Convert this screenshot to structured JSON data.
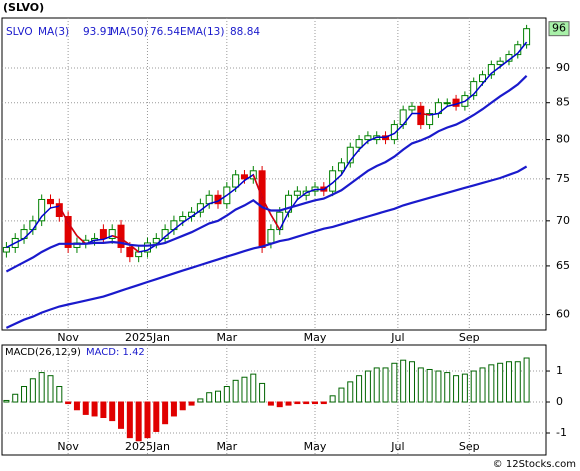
{
  "chart_data": {
    "type": "candlestick",
    "title": "(SLVO)",
    "symbol": "SLVO",
    "log_scale": true,
    "grid": true,
    "ylim": [
      58.5,
      97.7
    ],
    "yticks": [
      60,
      65,
      70,
      75,
      80,
      85,
      90
    ],
    "xlim": [
      -0.5,
      61.2
    ],
    "xticks": [
      {
        "value": 7,
        "label": "Nov"
      },
      {
        "value": 16,
        "label": "2025Jan"
      },
      {
        "value": 25,
        "label": "Mar"
      },
      {
        "value": 35,
        "label": "May"
      },
      {
        "value": 44.4,
        "label": "Jul"
      },
      {
        "value": 52.5,
        "label": "Sep"
      }
    ],
    "open": [
      66.5,
      67,
      68,
      69,
      70,
      72.5,
      72,
      70.5,
      67,
      67.5,
      67.8,
      69,
      68,
      69.5,
      67,
      66,
      66.5,
      67.5,
      68,
      69,
      70,
      70.5,
      71,
      72,
      73,
      72,
      74,
      75.5,
      75,
      76,
      67.5,
      69,
      71,
      73,
      73,
      73.5,
      74,
      73.5,
      76,
      77,
      79,
      80,
      80,
      80.5,
      80,
      82,
      84,
      84.5,
      82,
      83.5,
      85,
      85.5,
      84.5,
      86,
      88,
      89,
      90.5,
      91,
      92,
      93.5
    ],
    "high": [
      67.6,
      68.6,
      69.6,
      70.6,
      73.1,
      73.1,
      72.6,
      71.1,
      68.1,
      68.4,
      68.6,
      69.6,
      69.6,
      70.1,
      67.6,
      67.1,
      68.1,
      68.6,
      69.6,
      70.6,
      71.1,
      71.6,
      72.6,
      73.6,
      73.6,
      74.6,
      76.1,
      76.1,
      76.6,
      76.6,
      69.6,
      71.6,
      73.6,
      74.1,
      74.1,
      74.6,
      74.6,
      76.6,
      77.6,
      79.6,
      80.6,
      81.1,
      81.1,
      81.1,
      82.6,
      84.6,
      85.1,
      85.1,
      84.1,
      85.6,
      85.6,
      86.1,
      86.6,
      88.6,
      89.6,
      91.1,
      91.6,
      92.6,
      94.1,
      96.6
    ],
    "low": [
      65.9,
      66.4,
      67.4,
      68.4,
      69.4,
      71.4,
      69.9,
      66.4,
      66.4,
      66.9,
      67.2,
      67.4,
      67.4,
      66.4,
      65.4,
      65.4,
      65.9,
      66.9,
      67.4,
      68.4,
      69.4,
      69.9,
      70.4,
      71.4,
      71.4,
      71.4,
      73.4,
      74.4,
      74.4,
      66.4,
      66.9,
      68.4,
      70.4,
      72.4,
      72.4,
      72.9,
      72.9,
      72.9,
      75.4,
      76.4,
      78.4,
      79.4,
      79.4,
      79.4,
      79.4,
      81.4,
      83.4,
      81.4,
      81.4,
      82.9,
      84.4,
      83.9,
      83.9,
      85.4,
      87.4,
      88.4,
      89.9,
      90.4,
      91.4,
      92.9
    ],
    "close": [
      67,
      68,
      69,
      70,
      72.5,
      72,
      70.5,
      67,
      67.5,
      67.8,
      68,
      68,
      69,
      67,
      66,
      66.5,
      67.5,
      68,
      69,
      70,
      70.5,
      71,
      72,
      73,
      72,
      74,
      75.5,
      75,
      76,
      67,
      69,
      71,
      73,
      73.5,
      73.5,
      74,
      73.5,
      76,
      77,
      79,
      80,
      80.5,
      80.5,
      80,
      82,
      84,
      84.5,
      82,
      83.5,
      85,
      85,
      84.5,
      86,
      88,
      89,
      90.5,
      91,
      92,
      93.5,
      96
    ],
    "up_color": "#008000",
    "down_color": "#e00000",
    "last_price": 96,
    "series": [
      {
        "name": "MA(3)",
        "color": "#0000cc",
        "last": 93.91,
        "values": [
          67,
          67.5,
          68,
          69,
          70.5,
          71.5,
          71.7,
          69.8,
          68.3,
          67.4,
          67.8,
          67.9,
          68.3,
          68,
          67.3,
          66.5,
          66.7,
          67.3,
          68.2,
          69,
          69.8,
          70.5,
          71.2,
          72,
          72.3,
          73,
          73.8,
          74.8,
          75.5,
          72.7,
          70.7,
          69,
          71,
          72.5,
          73.3,
          73.7,
          73.7,
          74.5,
          75.5,
          77.3,
          78.7,
          79.8,
          80.3,
          80.3,
          80.8,
          82,
          83.5,
          83.5,
          83.3,
          83.5,
          84.5,
          84.8,
          85.2,
          86.2,
          87.7,
          89.2,
          90.2,
          91.2,
          92.2,
          93.91
        ]
      },
      {
        "name": "MA(50)",
        "color": "#1a1acc",
        "last": 76.54,
        "values": [
          58.7,
          59.1,
          59.5,
          59.8,
          60.2,
          60.5,
          60.8,
          61,
          61.2,
          61.4,
          61.6,
          61.8,
          62.1,
          62.4,
          62.7,
          63,
          63.3,
          63.6,
          63.9,
          64.2,
          64.5,
          64.8,
          65.1,
          65.4,
          65.7,
          66,
          66.3,
          66.6,
          66.9,
          67.1,
          67.4,
          67.7,
          67.9,
          68.2,
          68.5,
          68.8,
          69.1,
          69.3,
          69.6,
          69.9,
          70.2,
          70.5,
          70.8,
          71.1,
          71.4,
          71.8,
          72.1,
          72.4,
          72.7,
          73,
          73.3,
          73.6,
          73.9,
          74.2,
          74.5,
          74.8,
          75.1,
          75.5,
          75.9,
          76.54
        ]
      },
      {
        "name": "EMA(13)",
        "color": "#1a1acc",
        "last": 88.84,
        "values": [
          64.4,
          64.9,
          65.4,
          65.9,
          66.5,
          67,
          67.4,
          67.4,
          67.4,
          67.4,
          67.5,
          67.5,
          67.6,
          67.5,
          67.3,
          67.2,
          67.2,
          67.3,
          67.5,
          67.9,
          68.3,
          68.7,
          69.2,
          69.7,
          70,
          70.6,
          71.3,
          71.8,
          72.4,
          71.6,
          71.2,
          71.2,
          71.5,
          71.8,
          72.1,
          72.4,
          72.6,
          73.1,
          73.6,
          74.4,
          75.2,
          76,
          76.6,
          77.1,
          77.8,
          78.7,
          79.5,
          79.9,
          80.4,
          81.1,
          81.6,
          82,
          82.6,
          83.3,
          84.1,
          85,
          85.9,
          86.7,
          87.6,
          88.84
        ]
      }
    ],
    "macd": {
      "type": "bar",
      "label": "MACD(26,12,9)",
      "value_label": "MACD: 1.42",
      "ylim": [
        -1.71,
        1.84
      ],
      "yticks": [
        -1,
        0,
        1
      ],
      "up_color": "#006400",
      "down_color": "#e00000",
      "values": [
        0.05,
        0.25,
        0.5,
        0.75,
        0.95,
        0.85,
        0.5,
        -0.05,
        -0.25,
        -0.4,
        -0.45,
        -0.5,
        -0.6,
        -0.85,
        -1.15,
        -1.25,
        -1.15,
        -0.95,
        -0.7,
        -0.45,
        -0.25,
        -0.1,
        0.1,
        0.3,
        0.35,
        0.5,
        0.7,
        0.8,
        0.9,
        0.6,
        -0.1,
        -0.15,
        -0.1,
        -0.05,
        -0.05,
        -0.05,
        -0.05,
        0.2,
        0.45,
        0.65,
        0.85,
        1.0,
        1.1,
        1.1,
        1.25,
        1.35,
        1.3,
        1.1,
        1.05,
        1.0,
        0.95,
        0.85,
        0.9,
        1.0,
        1.1,
        1.2,
        1.25,
        1.3,
        1.3,
        1.42
      ]
    },
    "footer": "© 12Stocks.com"
  }
}
